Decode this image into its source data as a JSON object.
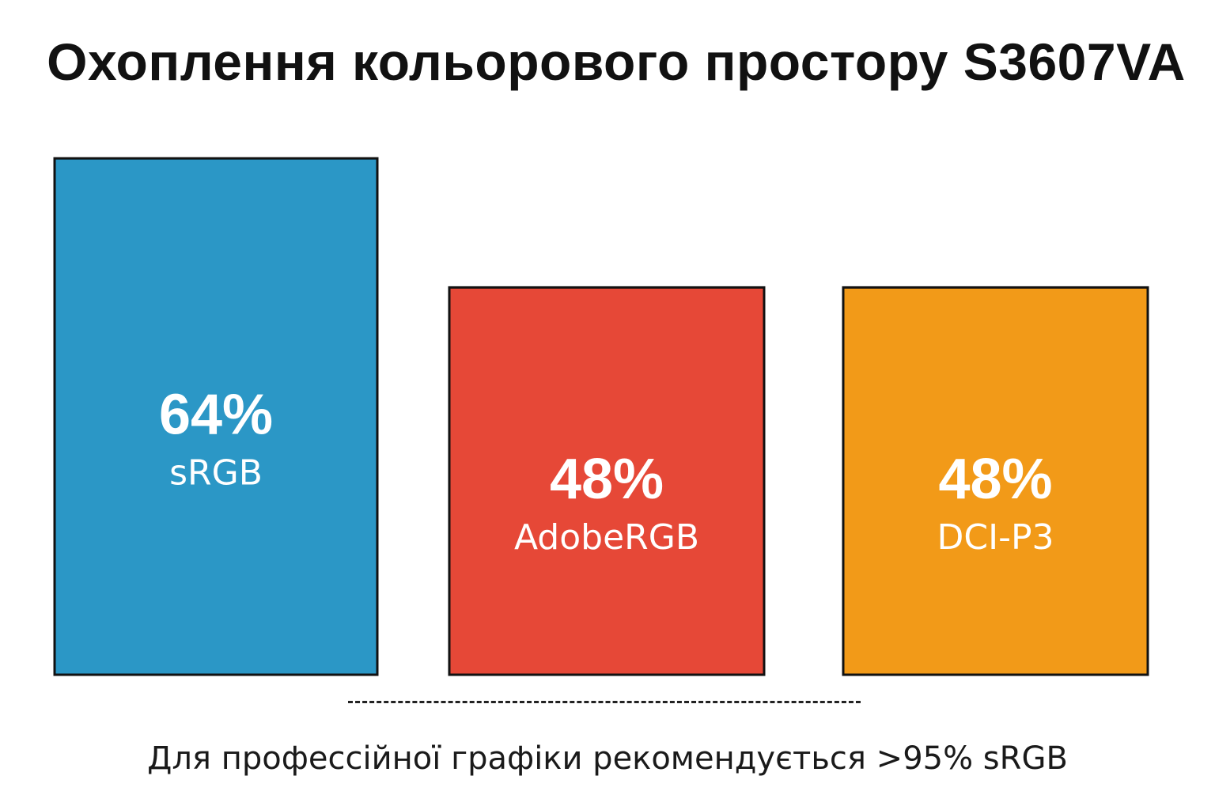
{
  "chart_data": {
    "type": "bar",
    "title": "Охоплення кольорового простору S3607VA",
    "categories": [
      "sRGB",
      "AdobeRGB",
      "DCI-P3"
    ],
    "values": [
      64,
      48,
      48
    ],
    "value_labels": [
      "64%",
      "48%",
      "48%"
    ],
    "colors": [
      "#2b97c6",
      "#e64837",
      "#f29a18"
    ],
    "ylim": [
      0,
      100
    ],
    "grid": false,
    "legend": "none",
    "annotation": "Для профессійної графіки рекомендується >95% sRGB"
  }
}
